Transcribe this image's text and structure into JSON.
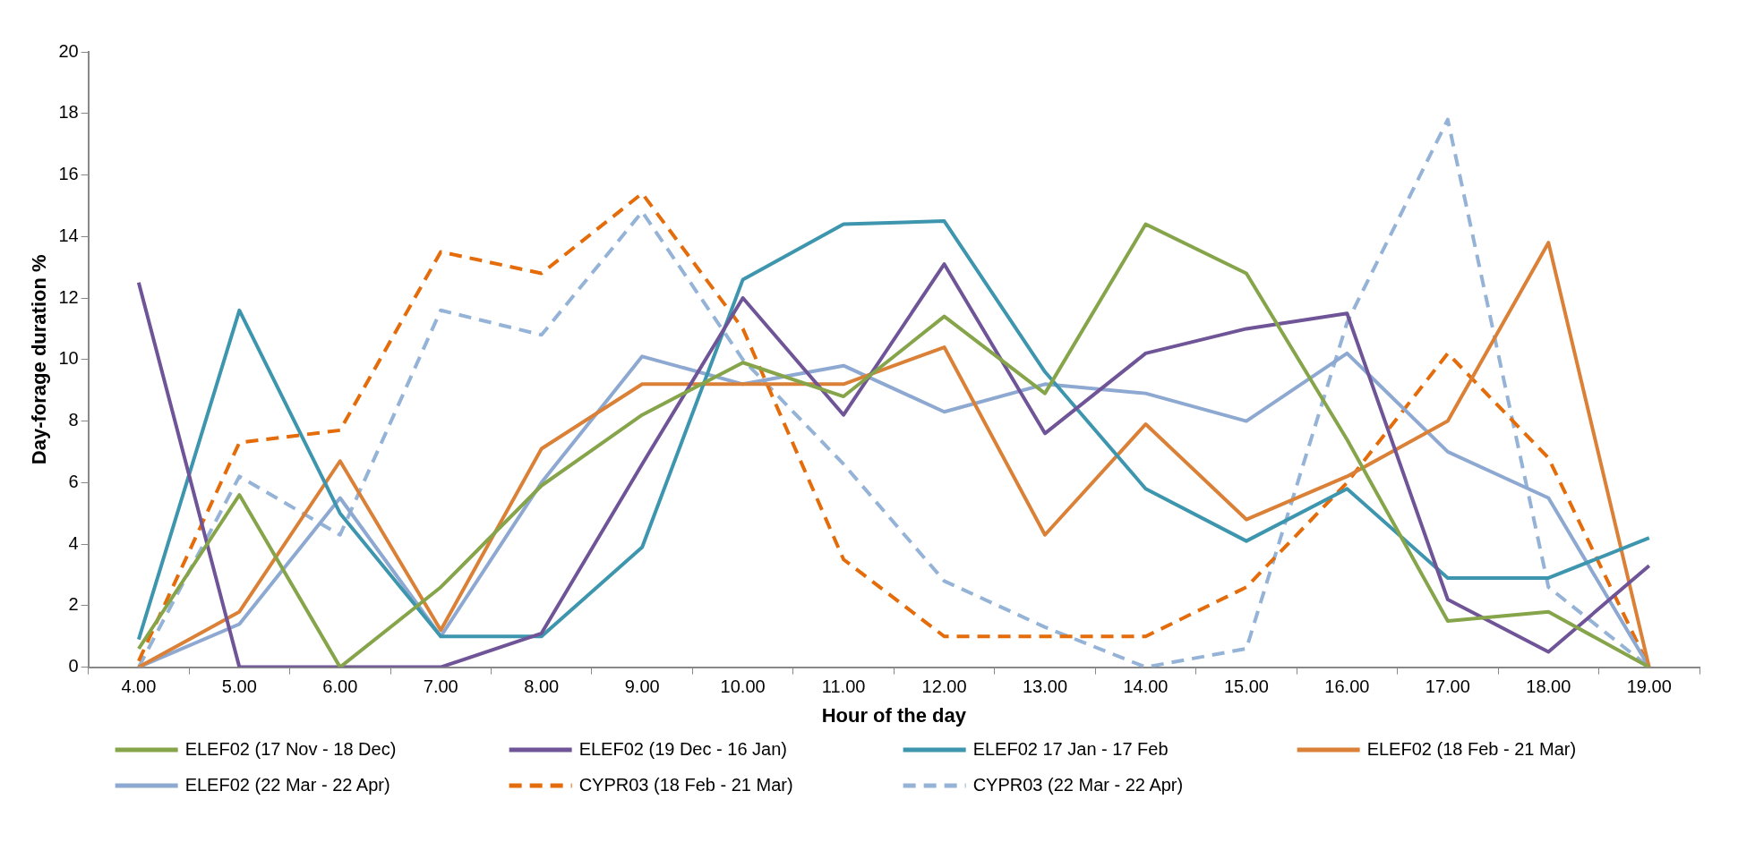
{
  "chart_data": {
    "type": "line",
    "xlabel": "Hour of the day",
    "ylabel": "Day-forage duration %",
    "categories": [
      "4.00",
      "5.00",
      "6.00",
      "7.00",
      "8.00",
      "9.00",
      "10.00",
      "11.00",
      "12.00",
      "13.00",
      "14.00",
      "15.00",
      "16.00",
      "17.00",
      "18.00",
      "19.00"
    ],
    "ylim": [
      0,
      20
    ],
    "yticks": [
      0,
      2,
      4,
      6,
      8,
      10,
      12,
      14,
      16,
      18,
      20
    ],
    "grid": false,
    "legend": "bottom",
    "marker": "none",
    "series": [
      {
        "name": "ELEF02 (17 Nov - 18 Dec)",
        "color": "#86a44a",
        "line_style": "solid",
        "values": [
          0.6,
          5.6,
          0,
          2.6,
          5.9,
          8.2,
          9.9,
          8.8,
          11.4,
          8.9,
          14.4,
          12.8,
          7.4,
          1.5,
          1.8,
          0
        ]
      },
      {
        "name": "ELEF02 (19 Dec - 16 Jan)",
        "color": "#6f5597",
        "line_style": "solid",
        "values": [
          12.5,
          0,
          0,
          0,
          1.1,
          6.6,
          12.0,
          8.2,
          13.1,
          7.6,
          10.2,
          11.0,
          11.5,
          2.2,
          0.5,
          3.3
        ]
      },
      {
        "name": "ELEF02 17 Jan - 17 Feb",
        "color": "#3d96ae",
        "line_style": "solid",
        "values": [
          0.9,
          11.6,
          5.0,
          1.0,
          1.0,
          3.9,
          12.6,
          14.4,
          14.5,
          9.6,
          5.8,
          4.1,
          5.8,
          2.9,
          2.9,
          4.2
        ]
      },
      {
        "name": "ELEF02 (18 Feb - 21 Mar)",
        "color": "#da8137",
        "line_style": "solid",
        "values": [
          0,
          1.8,
          6.7,
          1.2,
          7.1,
          9.2,
          9.2,
          9.2,
          10.4,
          4.3,
          7.9,
          4.8,
          6.2,
          8.0,
          13.8,
          0
        ]
      },
      {
        "name": "ELEF02 (22 Mar - 22 Apr)",
        "color": "#8ea9d1",
        "line_style": "solid",
        "values": [
          0,
          1.4,
          5.5,
          1.0,
          6.0,
          10.1,
          9.2,
          9.8,
          8.3,
          9.2,
          8.9,
          8.0,
          10.2,
          7.0,
          5.5,
          0
        ]
      },
      {
        "name": "CYPR03 (18 Feb - 21 Mar)",
        "color": "#e46c0a",
        "line_style": "dashed",
        "values": [
          0.2,
          7.3,
          7.7,
          13.5,
          12.8,
          15.4,
          11.0,
          3.5,
          1.0,
          1.0,
          1.0,
          2.6,
          6.0,
          10.2,
          6.8,
          0
        ]
      },
      {
        "name": "CYPR03 (22 Mar - 22 Apr)",
        "color": "#95b3d7",
        "line_style": "dashed",
        "values": [
          0,
          6.2,
          4.3,
          11.6,
          10.8,
          14.8,
          10.0,
          6.6,
          2.8,
          1.3,
          0,
          0.6,
          11.2,
          17.8,
          2.6,
          0
        ]
      }
    ]
  }
}
